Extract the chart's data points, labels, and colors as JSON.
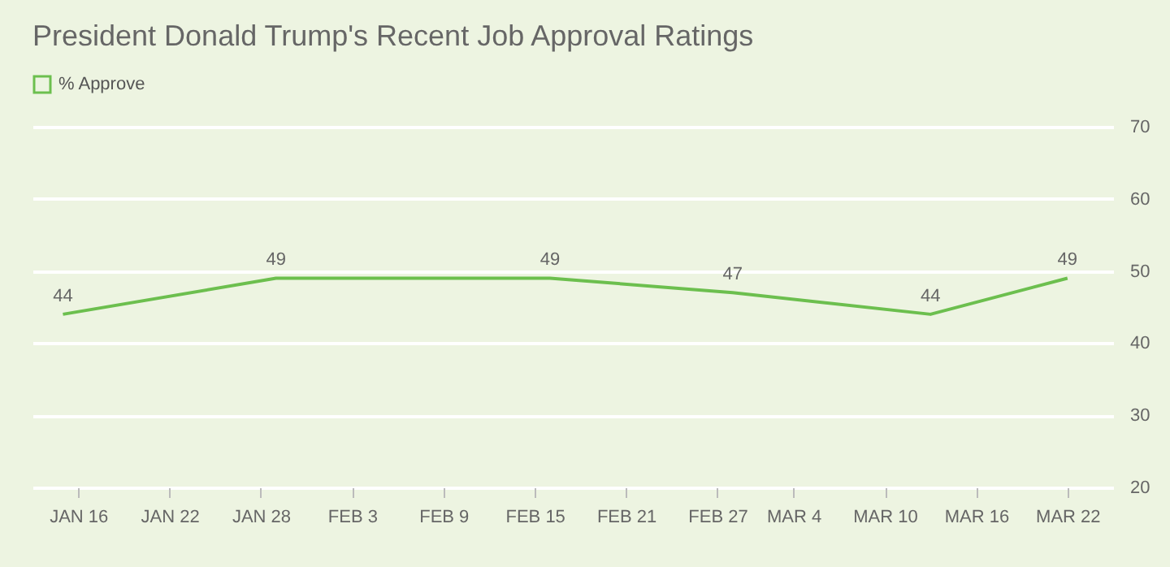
{
  "chart_data": {
    "type": "line",
    "title": "President Donald Trump's Recent Job Approval Ratings",
    "x": [
      "--01-15",
      "--01-29",
      "--02-16",
      "--02-28",
      "--03-13",
      "--03-22"
    ],
    "series": [
      {
        "name": "% Approve",
        "color": "#6cbf4e",
        "values": [
          44,
          49,
          49,
          47,
          44,
          49
        ]
      }
    ],
    "xlim": [
      "--01-13",
      "--03-25"
    ],
    "xticks": [
      {
        "value": "--01-16",
        "label": "JAN 16"
      },
      {
        "value": "--01-22",
        "label": "JAN 22"
      },
      {
        "value": "--01-28",
        "label": "JAN 28"
      },
      {
        "value": "--02-03",
        "label": "FEB 3"
      },
      {
        "value": "--02-09",
        "label": "FEB 9"
      },
      {
        "value": "--02-15",
        "label": "FEB 15"
      },
      {
        "value": "--02-21",
        "label": "FEB 21"
      },
      {
        "value": "--02-27",
        "label": "FEB 27"
      },
      {
        "value": "--03-04",
        "label": "MAR 4"
      },
      {
        "value": "--03-10",
        "label": "MAR 10"
      },
      {
        "value": "--03-16",
        "label": "MAR 16"
      },
      {
        "value": "--03-22",
        "label": "MAR 22"
      }
    ],
    "ylim": [
      20,
      70
    ],
    "yticks": [
      20,
      30,
      40,
      50,
      60,
      70
    ],
    "grid": "y",
    "legend": "top left",
    "data_labels": true
  }
}
